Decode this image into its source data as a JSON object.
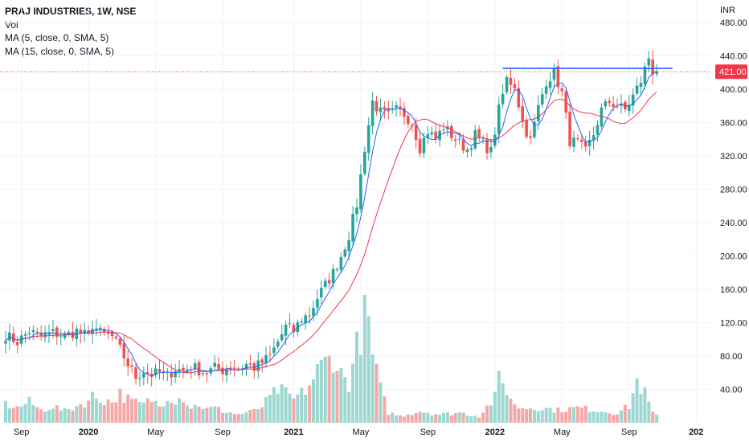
{
  "legend": {
    "symbol": "PRAJ INDUSTRIES, 1W, NSE",
    "vol": "Vol",
    "ma5": "MA (5, close, 0, SMA, 5)",
    "ma15": "MA (15, close, 0, SMA, 5)"
  },
  "colors": {
    "up": "#26a69a",
    "down": "#ef5350",
    "vol_up": "#9cd8d1",
    "vol_down": "#f6a8a8",
    "ma5": "#2962ff",
    "ma15": "#f23645",
    "price_label": "#f23645",
    "grid": "#f0f3fa",
    "axis_text": "#131722",
    "hline": "#2962ff"
  },
  "chart_data": {
    "type": "candlestick",
    "symbol": "PRAJ INDUSTRIES",
    "interval": "1W",
    "exchange": "NSE",
    "currency_label": "INR",
    "last_price": 421,
    "last_price_label": "421.00",
    "horizontal_line": 425,
    "y_ticks": [
      40,
      80,
      120,
      160,
      200,
      240,
      280,
      320,
      360,
      400,
      440,
      480
    ],
    "y_tick_labels": [
      "40.00",
      "80.00",
      "120.00",
      "160.00",
      "200.00",
      "240.00",
      "280.00",
      "320.00",
      "360.00",
      "400.00",
      "440.00",
      "480.00"
    ],
    "x_tick_labels": [
      {
        "label": "Sep",
        "index": 4,
        "bold": false
      },
      {
        "label": "2020",
        "index": 21,
        "bold": true
      },
      {
        "label": "May",
        "index": 38,
        "bold": false
      },
      {
        "label": "Sep",
        "index": 55,
        "bold": false
      },
      {
        "label": "2021",
        "index": 73,
        "bold": true
      },
      {
        "label": "May",
        "index": 90,
        "bold": false
      },
      {
        "label": "Sep",
        "index": 107,
        "bold": false
      },
      {
        "label": "2022",
        "index": 124,
        "bold": true
      },
      {
        "label": "May",
        "index": 141,
        "bold": false
      },
      {
        "label": "Sep",
        "index": 158,
        "bold": false
      },
      {
        "label": "202",
        "index": 175,
        "bold": true
      }
    ],
    "close_path": [
      [
        0,
        105
      ],
      [
        3,
        97
      ],
      [
        6,
        110
      ],
      [
        9,
        103
      ],
      [
        12,
        108
      ],
      [
        15,
        104
      ],
      [
        18,
        110
      ],
      [
        21,
        103
      ],
      [
        22,
        118
      ],
      [
        24,
        108
      ],
      [
        27,
        103
      ],
      [
        29,
        88
      ],
      [
        31,
        70
      ],
      [
        33,
        55
      ],
      [
        35,
        62
      ],
      [
        37,
        58
      ],
      [
        39,
        60
      ],
      [
        41,
        56
      ],
      [
        43,
        65
      ],
      [
        45,
        62
      ],
      [
        47,
        68
      ],
      [
        49,
        63
      ],
      [
        51,
        60
      ],
      [
        53,
        66
      ],
      [
        55,
        63
      ],
      [
        57,
        68
      ],
      [
        59,
        65
      ],
      [
        61,
        70
      ],
      [
        63,
        66
      ],
      [
        65,
        72
      ],
      [
        67,
        80
      ],
      [
        69,
        97
      ],
      [
        71,
        115
      ],
      [
        73,
        110
      ],
      [
        75,
        125
      ],
      [
        77,
        130
      ],
      [
        79,
        150
      ],
      [
        81,
        165
      ],
      [
        83,
        180
      ],
      [
        85,
        200
      ],
      [
        87,
        225
      ],
      [
        89,
        262
      ],
      [
        91,
        330
      ],
      [
        93,
        385
      ],
      [
        95,
        372
      ],
      [
        97,
        368
      ],
      [
        99,
        375
      ],
      [
        101,
        370
      ],
      [
        103,
        360
      ],
      [
        105,
        330
      ],
      [
        107,
        350
      ],
      [
        109,
        340
      ],
      [
        111,
        355
      ],
      [
        113,
        345
      ],
      [
        115,
        335
      ],
      [
        117,
        328
      ],
      [
        119,
        345
      ],
      [
        121,
        335
      ],
      [
        123,
        325
      ],
      [
        125,
        375
      ],
      [
        127,
        412
      ],
      [
        129,
        405
      ],
      [
        131,
        360
      ],
      [
        133,
        338
      ],
      [
        135,
        378
      ],
      [
        137,
        410
      ],
      [
        139,
        420
      ],
      [
        141,
        395
      ],
      [
        143,
        338
      ],
      [
        145,
        335
      ],
      [
        147,
        325
      ],
      [
        149,
        346
      ],
      [
        151,
        375
      ],
      [
        153,
        385
      ],
      [
        155,
        380
      ],
      [
        157,
        375
      ],
      [
        159,
        392
      ],
      [
        161,
        410
      ],
      [
        163,
        438
      ],
      [
        164,
        422
      ],
      [
        165,
        421
      ]
    ],
    "volume_path": [
      [
        0,
        22
      ],
      [
        3,
        18
      ],
      [
        6,
        25
      ],
      [
        9,
        15
      ],
      [
        12,
        20
      ],
      [
        15,
        14
      ],
      [
        18,
        20
      ],
      [
        21,
        26
      ],
      [
        22,
        32
      ],
      [
        24,
        28
      ],
      [
        27,
        25
      ],
      [
        29,
        35
      ],
      [
        31,
        28
      ],
      [
        33,
        24
      ],
      [
        35,
        22
      ],
      [
        37,
        28
      ],
      [
        39,
        20
      ],
      [
        41,
        32
      ],
      [
        43,
        28
      ],
      [
        45,
        30
      ],
      [
        47,
        18
      ],
      [
        49,
        22
      ],
      [
        51,
        16
      ],
      [
        53,
        18
      ],
      [
        55,
        14
      ],
      [
        57,
        12
      ],
      [
        59,
        10
      ],
      [
        61,
        12
      ],
      [
        63,
        14
      ],
      [
        65,
        20
      ],
      [
        67,
        30
      ],
      [
        69,
        40
      ],
      [
        71,
        35
      ],
      [
        73,
        28
      ],
      [
        75,
        35
      ],
      [
        77,
        45
      ],
      [
        79,
        62
      ],
      [
        81,
        72
      ],
      [
        83,
        80
      ],
      [
        85,
        58
      ],
      [
        87,
        48
      ],
      [
        89,
        90
      ],
      [
        91,
        125
      ],
      [
        92,
        118
      ],
      [
        93,
        80
      ],
      [
        95,
        40
      ],
      [
        97,
        12
      ],
      [
        100,
        8
      ],
      [
        105,
        14
      ],
      [
        110,
        10
      ],
      [
        115,
        12
      ],
      [
        120,
        8
      ],
      [
        124,
        30
      ],
      [
        125,
        52
      ],
      [
        127,
        40
      ],
      [
        129,
        20
      ],
      [
        131,
        18
      ],
      [
        135,
        18
      ],
      [
        140,
        15
      ],
      [
        145,
        18
      ],
      [
        150,
        15
      ],
      [
        155,
        12
      ],
      [
        158,
        20
      ],
      [
        160,
        50
      ],
      [
        162,
        35
      ],
      [
        164,
        12
      ],
      [
        165,
        8
      ]
    ]
  }
}
